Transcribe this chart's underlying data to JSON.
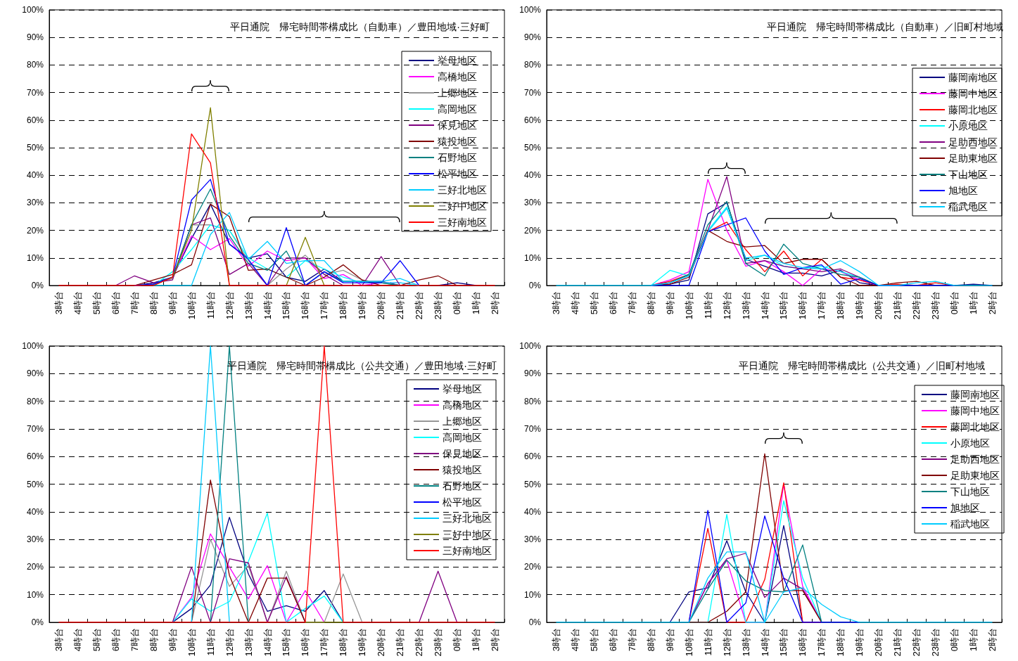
{
  "chart_data": [
    {
      "type": "line",
      "title": "平日通院　帰宅時間帯構成比（自動車）／豊田地域·三好町",
      "categories": [
        "3時台",
        "4時台",
        "5時台",
        "6時台",
        "7時台",
        "8時台",
        "9時台",
        "10時台",
        "11時台",
        "12時台",
        "13時台",
        "14時台",
        "15時台",
        "16時台",
        "17時台",
        "18時台",
        "19時台",
        "20時台",
        "21時台",
        "22時台",
        "23時台",
        "0時台",
        "1時台",
        "2時台"
      ],
      "ylim": [
        0,
        100
      ],
      "yticks": [
        {
          "value": 0,
          "label": "0%"
        },
        {
          "value": 10,
          "label": "10%"
        },
        {
          "value": 20,
          "label": "20%"
        },
        {
          "value": 30,
          "label": "30%"
        },
        {
          "value": 40,
          "label": "40%"
        },
        {
          "value": 50,
          "label": "50%"
        },
        {
          "value": 60,
          "label": "60%"
        },
        {
          "value": 70,
          "label": "70%"
        },
        {
          "value": 80,
          "label": "80%"
        },
        {
          "value": 90,
          "label": "90%"
        },
        {
          "value": 100,
          "label": "100%"
        }
      ],
      "grid": "y",
      "legend": "right",
      "marker": "none",
      "series": [
        {
          "name": "挙母地区",
          "color": "#000080",
          "values": [
            null,
            null,
            null,
            null,
            0,
            1,
            3,
            17,
            29.5,
            15,
            10,
            11.5,
            3,
            1.5,
            6,
            1.5,
            1.5,
            1.5,
            0,
            null,
            0,
            1,
            0,
            null
          ]
        },
        {
          "name": "高橋地区",
          "color": "#ff00ff",
          "values": [
            null,
            null,
            null,
            null,
            0,
            0.5,
            3,
            18,
            13,
            17,
            7,
            12.5,
            9,
            10,
            2.5,
            4,
            0,
            1,
            1,
            0,
            null,
            null,
            null,
            null
          ]
        },
        {
          "name": "上郷地区",
          "color": "#969696",
          "values": [
            null,
            null,
            null,
            null,
            0,
            0.5,
            2.5,
            22,
            22,
            20,
            9,
            0,
            6,
            11,
            4,
            5.5,
            2,
            1,
            0,
            null,
            null,
            null,
            null,
            null
          ]
        },
        {
          "name": "高岡地区",
          "color": "#00ffff",
          "values": [
            null,
            null,
            null,
            null,
            null,
            0,
            5,
            13,
            22,
            20,
            10,
            6,
            3,
            9,
            6,
            3,
            1,
            1,
            1,
            0,
            null,
            null,
            null,
            null
          ]
        },
        {
          "name": "保見地区",
          "color": "#800080",
          "values": [
            null,
            null,
            null,
            0,
            3.5,
            1,
            2,
            22,
            24.5,
            4,
            8,
            0,
            10,
            10,
            4,
            0,
            0,
            10.5,
            0,
            null,
            null,
            null,
            null,
            null
          ]
        },
        {
          "name": "猿投地区",
          "color": "#800000",
          "values": [
            null,
            null,
            null,
            null,
            0,
            2,
            4,
            7.5,
            29.5,
            25,
            5.5,
            6,
            3,
            0,
            3,
            7.5,
            2,
            0,
            0,
            2,
            3.5,
            0,
            null,
            null
          ]
        },
        {
          "name": "石野地区",
          "color": "#008080",
          "values": [
            null,
            null,
            null,
            null,
            0,
            0.5,
            3,
            22,
            35,
            18,
            8,
            5.5,
            12.5,
            0,
            5,
            1.5,
            1.5,
            1,
            0,
            null,
            null,
            null,
            null,
            null
          ]
        },
        {
          "name": "松平地区",
          "color": "#0000ff",
          "values": [
            null,
            null,
            null,
            null,
            0,
            0.5,
            3,
            31,
            38.5,
            15,
            9.5,
            0,
            21,
            0,
            5,
            1,
            1,
            1,
            9,
            0,
            null,
            null,
            null,
            null
          ]
        },
        {
          "name": "三好北地区",
          "color": "#00ccff",
          "values": [
            null,
            null,
            null,
            null,
            null,
            0,
            0,
            0,
            18.5,
            26.5,
            9.5,
            16,
            8,
            9,
            9,
            1.5,
            1.5,
            1.5,
            2.5,
            0,
            null,
            null,
            null,
            null
          ]
        },
        {
          "name": "三好中地区",
          "color": "#808000",
          "values": [
            null,
            null,
            null,
            null,
            null,
            0,
            3,
            20,
            64.5,
            0,
            null,
            null,
            0,
            17.5,
            0,
            null,
            null,
            null,
            null,
            null,
            null,
            null,
            null,
            null
          ]
        },
        {
          "name": "三好南地区",
          "color": "#ff0000",
          "values": [
            0,
            0,
            0,
            0,
            0,
            0,
            3,
            55,
            44.5,
            0,
            0,
            0,
            0,
            0,
            0,
            0,
            0,
            0,
            0,
            0,
            0,
            0,
            0,
            0
          ]
        }
      ]
    },
    {
      "type": "line",
      "title": "平日通院　帰宅時間帯構成比（自動車）／旧町村地域",
      "categories": [
        "3時台",
        "4時台",
        "5時台",
        "6時台",
        "7時台",
        "8時台",
        "9時台",
        "10時台",
        "11時台",
        "12時台",
        "13時台",
        "14時台",
        "15時台",
        "16時台",
        "17時台",
        "18時台",
        "19時台",
        "20時台",
        "21時台",
        "22時台",
        "23時台",
        "0時台",
        "1時台",
        "2時台"
      ],
      "ylim": [
        0,
        100
      ],
      "yticks": [
        {
          "value": 0,
          "label": "0%"
        },
        {
          "value": 10,
          "label": "10%"
        },
        {
          "value": 20,
          "label": "20%"
        },
        {
          "value": 30,
          "label": "30%"
        },
        {
          "value": 40,
          "label": "40%"
        },
        {
          "value": 50,
          "label": "50%"
        },
        {
          "value": 60,
          "label": "60%"
        },
        {
          "value": 70,
          "label": "70%"
        },
        {
          "value": 80,
          "label": "80%"
        },
        {
          "value": 90,
          "label": "90%"
        },
        {
          "value": 100,
          "label": "100%"
        }
      ],
      "grid": "y",
      "legend": "right",
      "marker": "none",
      "series": [
        {
          "name": "藤岡南地区",
          "color": "#000080",
          "values": [
            null,
            null,
            null,
            null,
            null,
            0,
            0.5,
            2,
            26,
            30,
            9.5,
            7,
            4.5,
            4.5,
            3.5,
            5.5,
            1,
            0,
            0,
            0,
            0,
            0,
            0.5,
            0
          ]
        },
        {
          "name": "藤岡中地区",
          "color": "#ff00ff",
          "values": [
            null,
            null,
            null,
            null,
            null,
            0,
            2,
            5,
            38.5,
            20,
            7,
            9,
            5,
            0,
            6,
            5,
            2,
            0,
            null,
            null,
            null,
            null,
            null,
            null
          ]
        },
        {
          "name": "藤岡北地区",
          "color": "#ff0000",
          "values": [
            null,
            null,
            null,
            null,
            null,
            0,
            1.5,
            4,
            19.5,
            23,
            13,
            5,
            12.5,
            3.5,
            9.5,
            3,
            2,
            0,
            0.5,
            0,
            1,
            0,
            null,
            null
          ]
        },
        {
          "name": "小原地区",
          "color": "#00ffff",
          "values": [
            null,
            null,
            null,
            null,
            null,
            0,
            5.5,
            3.5,
            20,
            28.5,
            9,
            11,
            7,
            6,
            7,
            5,
            3,
            0,
            0,
            null,
            null,
            null,
            null,
            null
          ]
        },
        {
          "name": "足助西地区",
          "color": "#800080",
          "values": [
            null,
            null,
            null,
            null,
            null,
            0,
            1,
            4,
            20,
            39.5,
            8,
            9,
            7,
            6,
            5,
            6,
            3,
            0,
            0,
            0,
            0,
            0,
            null,
            null
          ]
        },
        {
          "name": "足助東地区",
          "color": "#800000",
          "values": [
            null,
            null,
            null,
            null,
            null,
            0,
            0.5,
            3,
            20,
            16,
            14,
            14.5,
            8,
            9.5,
            9.5,
            3,
            0,
            0,
            1,
            1.5,
            0,
            0,
            null,
            null
          ]
        },
        {
          "name": "下山地区",
          "color": "#008080",
          "values": [
            null,
            null,
            null,
            null,
            null,
            0,
            1,
            4,
            22,
            30.5,
            8,
            3.5,
            15,
            8,
            6,
            4,
            3,
            0,
            0,
            0,
            0,
            0,
            null,
            null
          ]
        },
        {
          "name": "旭地区",
          "color": "#0000ff",
          "values": [
            null,
            null,
            null,
            null,
            null,
            0,
            0,
            0,
            19.5,
            22,
            24.5,
            12.5,
            4,
            6.5,
            7.5,
            0.5,
            2.5,
            0,
            0,
            0,
            0,
            0,
            null,
            null
          ]
        },
        {
          "name": "稲武地区",
          "color": "#00ccff",
          "values": [
            0,
            0,
            0,
            0,
            0,
            0,
            1,
            3.5,
            19.5,
            28,
            10,
            11,
            8,
            6.5,
            6,
            9,
            5,
            0,
            0,
            1,
            1.5,
            0,
            0,
            0
          ]
        }
      ]
    },
    {
      "type": "line",
      "title": "平日通院　帰宅時間帯構成比（公共交通）／豊田地域·三好町",
      "categories": [
        "3時台",
        "4時台",
        "5時台",
        "6時台",
        "7時台",
        "8時台",
        "9時台",
        "10時台",
        "11時台",
        "12時台",
        "13時台",
        "14時台",
        "15時台",
        "16時台",
        "17時台",
        "18時台",
        "19時台",
        "20時台",
        "21時台",
        "22時台",
        "23時台",
        "0時台",
        "1時台",
        "2時台"
      ],
      "ylim": [
        0,
        100
      ],
      "yticks": [
        {
          "value": 0,
          "label": "0%"
        },
        {
          "value": 10,
          "label": "10%"
        },
        {
          "value": 20,
          "label": "20%"
        },
        {
          "value": 30,
          "label": "30%"
        },
        {
          "value": 40,
          "label": "40%"
        },
        {
          "value": 50,
          "label": "50%"
        },
        {
          "value": 60,
          "label": "60%"
        },
        {
          "value": 70,
          "label": "70%"
        },
        {
          "value": 80,
          "label": "80%"
        },
        {
          "value": 90,
          "label": "90%"
        },
        {
          "value": 100,
          "label": "100%"
        }
      ],
      "grid": "y",
      "legend": "top right",
      "marker": "none",
      "series": [
        {
          "name": "挙母地区",
          "color": "#000080",
          "values": [
            null,
            null,
            null,
            null,
            null,
            null,
            0,
            5,
            13.5,
            38,
            17.5,
            4,
            6,
            4,
            11.5,
            0,
            null,
            null,
            null,
            null,
            null,
            null,
            null,
            null
          ]
        },
        {
          "name": "高橋地区",
          "color": "#ff00ff",
          "values": [
            null,
            null,
            null,
            null,
            null,
            null,
            0,
            9,
            32,
            20,
            8.5,
            20.5,
            0,
            11.5,
            0,
            null,
            null,
            null,
            null,
            null,
            null,
            null,
            null,
            null
          ]
        },
        {
          "name": "上郷地区",
          "color": "#969696",
          "values": [
            null,
            null,
            null,
            null,
            null,
            null,
            null,
            0,
            30,
            13,
            20.5,
            0,
            18.5,
            0,
            0,
            17.5,
            0,
            null,
            null,
            null,
            null,
            null,
            null,
            null
          ]
        },
        {
          "name": "高岡地区",
          "color": "#00ffff",
          "values": [
            null,
            null,
            null,
            null,
            null,
            null,
            0,
            8.5,
            4,
            7.5,
            22,
            39.5,
            0,
            5,
            9.5,
            0,
            null,
            null,
            null,
            null,
            null,
            null,
            null,
            null
          ]
        },
        {
          "name": "保見地区",
          "color": "#800080",
          "values": [
            null,
            null,
            null,
            null,
            null,
            null,
            0,
            20,
            0,
            23,
            21.5,
            0,
            16.5,
            0,
            null,
            null,
            null,
            null,
            null,
            0,
            18.5,
            0,
            null,
            null
          ]
        },
        {
          "name": "猿投地区",
          "color": "#800000",
          "values": [
            null,
            null,
            null,
            null,
            null,
            null,
            null,
            0,
            51.5,
            17,
            0,
            16,
            16,
            0,
            null,
            null,
            null,
            null,
            null,
            null,
            null,
            null,
            null,
            null
          ]
        },
        {
          "name": "石野地区",
          "color": "#008080",
          "values": [
            null,
            null,
            null,
            null,
            null,
            null,
            null,
            null,
            0,
            100,
            0,
            null,
            null,
            null,
            null,
            null,
            null,
            null,
            null,
            null,
            null,
            null,
            null,
            null
          ]
        },
        {
          "name": "松平地区",
          "color": "#0000ff",
          "values": [
            null,
            null,
            null,
            null,
            null,
            null,
            null,
            null,
            null,
            null,
            null,
            null,
            null,
            null,
            null,
            null,
            null,
            null,
            null,
            null,
            null,
            null,
            null,
            null
          ]
        },
        {
          "name": "三好北地区",
          "color": "#00ccff",
          "values": [
            null,
            null,
            null,
            null,
            null,
            null,
            null,
            0,
            100,
            0,
            null,
            null,
            null,
            null,
            null,
            null,
            null,
            null,
            null,
            null,
            null,
            null,
            null,
            null
          ]
        },
        {
          "name": "三好中地区",
          "color": "#808000",
          "values": [
            null,
            null,
            null,
            null,
            null,
            null,
            null,
            null,
            null,
            null,
            null,
            null,
            null,
            0,
            0,
            0,
            null,
            null,
            null,
            null,
            null,
            null,
            null,
            null
          ]
        },
        {
          "name": "三好南地区",
          "color": "#ff0000",
          "values": [
            0,
            0,
            0,
            0,
            0,
            0,
            0,
            0,
            0,
            0,
            0,
            0,
            0,
            0,
            100,
            0,
            0,
            0,
            0,
            0,
            0,
            0,
            0,
            0
          ]
        }
      ]
    },
    {
      "type": "line",
      "title": "平日通院　帰宅時間帯構成比（公共交通）／旧町村地域",
      "categories": [
        "3時台",
        "4時台",
        "5時台",
        "6時台",
        "7時台",
        "8時台",
        "9時台",
        "10時台",
        "11時台",
        "12時台",
        "13時台",
        "14時台",
        "15時台",
        "16時台",
        "17時台",
        "18時台",
        "19時台",
        "20時台",
        "21時台",
        "22時台",
        "23時台",
        "0時台",
        "1時台",
        "2時台"
      ],
      "ylim": [
        0,
        100
      ],
      "yticks": [
        {
          "value": 0,
          "label": "0%"
        },
        {
          "value": 10,
          "label": "10%"
        },
        {
          "value": 20,
          "label": "20%"
        },
        {
          "value": 30,
          "label": "30%"
        },
        {
          "value": 40,
          "label": "40%"
        },
        {
          "value": 50,
          "label": "50%"
        },
        {
          "value": 60,
          "label": "60%"
        },
        {
          "value": 70,
          "label": "70%"
        },
        {
          "value": 80,
          "label": "80%"
        },
        {
          "value": 90,
          "label": "90%"
        },
        {
          "value": 100,
          "label": "100%"
        }
      ],
      "grid": "y",
      "legend": "top right",
      "marker": "none",
      "series": [
        {
          "name": "藤岡南地区",
          "color": "#000080",
          "values": [
            null,
            null,
            null,
            null,
            null,
            null,
            0,
            11,
            12.5,
            29.5,
            11,
            0,
            35,
            0,
            0,
            null,
            null,
            null,
            null,
            null,
            null,
            null,
            null,
            null
          ]
        },
        {
          "name": "藤岡中地区",
          "color": "#ff00ff",
          "values": [
            null,
            null,
            null,
            null,
            null,
            null,
            null,
            0,
            14,
            22.5,
            0,
            0,
            50,
            13,
            0,
            0,
            0,
            null,
            null,
            null,
            null,
            null,
            null,
            null
          ]
        },
        {
          "name": "藤岡北地区",
          "color": "#ff0000",
          "values": [
            null,
            null,
            null,
            null,
            null,
            null,
            null,
            0,
            34,
            0,
            0,
            15.5,
            50.5,
            0,
            0,
            null,
            null,
            null,
            null,
            null,
            null,
            null,
            null,
            null
          ]
        },
        {
          "name": "小原地区",
          "color": "#00ffff",
          "values": [
            null,
            null,
            null,
            null,
            null,
            null,
            null,
            0,
            0,
            39,
            0,
            0,
            44,
            16,
            0,
            0,
            0,
            null,
            null,
            null,
            null,
            null,
            null,
            null
          ]
        },
        {
          "name": "足助西地区",
          "color": "#800080",
          "values": [
            null,
            null,
            null,
            null,
            null,
            null,
            null,
            0,
            14,
            23,
            25,
            9,
            16,
            12,
            0,
            0,
            0,
            null,
            null,
            null,
            null,
            null,
            null,
            null
          ]
        },
        {
          "name": "足助東地区",
          "color": "#800000",
          "values": [
            null,
            null,
            null,
            null,
            null,
            null,
            null,
            0,
            0,
            4,
            11,
            61,
            11.5,
            11.5,
            0,
            0,
            0,
            null,
            null,
            null,
            null,
            null,
            null,
            null
          ]
        },
        {
          "name": "下山地区",
          "color": "#008080",
          "values": [
            null,
            null,
            null,
            null,
            null,
            null,
            null,
            0,
            12,
            22.5,
            15,
            11.5,
            11,
            28,
            0,
            0,
            0,
            null,
            null,
            null,
            null,
            null,
            null,
            null
          ]
        },
        {
          "name": "旭地区",
          "color": "#0000ff",
          "values": [
            null,
            null,
            null,
            null,
            null,
            null,
            null,
            0,
            40.5,
            0,
            7,
            38.5,
            16,
            0,
            0,
            0,
            0,
            null,
            null,
            null,
            null,
            null,
            null,
            null
          ]
        },
        {
          "name": "稲武地区",
          "color": "#00ccff",
          "values": [
            0,
            0,
            0,
            0,
            0,
            0,
            0,
            0,
            16,
            25.5,
            25.5,
            0,
            11,
            12.5,
            6.5,
            2,
            0,
            0,
            0,
            0,
            0,
            0,
            0,
            0
          ]
        }
      ]
    }
  ]
}
